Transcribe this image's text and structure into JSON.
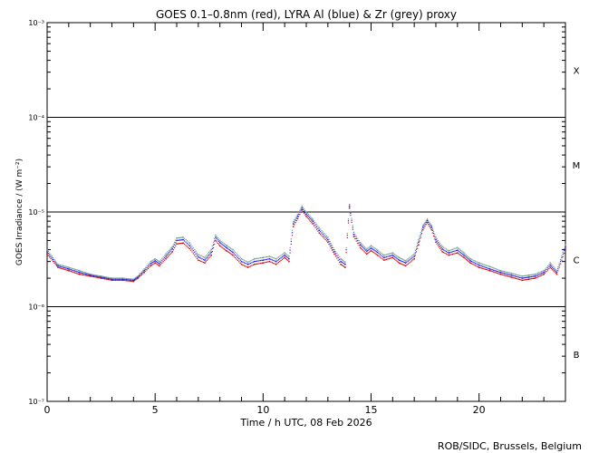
{
  "chart_data": {
    "type": "scatter",
    "title": "GOES 0.1–0.8nm (red), LYRA Al (blue) & Zr (grey) proxy",
    "xlabel": "Time / h UTC, 08 Feb 2026",
    "ylabel": "GOES Irradiance / (W m⁻²)",
    "credit": "ROB/SIDC, Brussels, Belgium",
    "xlim": [
      0,
      24
    ],
    "ylim": [
      1e-07,
      0.001
    ],
    "yscale": "log",
    "x_ticks": [
      0,
      5,
      10,
      15,
      20
    ],
    "x_tick_labels": [
      "0",
      "5",
      "10",
      "15",
      "20"
    ],
    "y_ticks": [
      1e-07,
      1e-06,
      1e-05,
      0.0001,
      0.001
    ],
    "y_tick_labels": [
      "10⁻⁷",
      "10⁻⁶",
      "10⁻⁵",
      "10⁻⁴",
      "10⁻³"
    ],
    "flare_class_levels": [
      1e-06,
      1e-05,
      0.0001
    ],
    "flare_classes": [
      {
        "label": "B",
        "mid": 3.16e-07
      },
      {
        "label": "C",
        "mid": 3.16e-06
      },
      {
        "label": "M",
        "mid": 3.16e-05
      },
      {
        "label": "X",
        "mid": 0.000316
      }
    ],
    "series": [
      {
        "color": "#d40000",
        "x": [
          0,
          0.5,
          1,
          1.5,
          2,
          2.5,
          3,
          3.5,
          4,
          4.2,
          4.5,
          4.8,
          5,
          5.2,
          5.5,
          5.8,
          6,
          6.3,
          6.6,
          7,
          7.3,
          7.6,
          7.8,
          8,
          8.3,
          8.6,
          9,
          9.3,
          9.6,
          10,
          10.3,
          10.6,
          11,
          11.2,
          11.4,
          11.6,
          11.8,
          12,
          12.3,
          12.6,
          13,
          13.3,
          13.6,
          13.8,
          14,
          14.2,
          14.5,
          14.8,
          15,
          15.3,
          15.6,
          16,
          16.3,
          16.6,
          17,
          17.2,
          17.4,
          17.6,
          17.8,
          18,
          18.3,
          18.6,
          19,
          19.3,
          19.6,
          20,
          20.5,
          21,
          21.5,
          22,
          22.3,
          22.6,
          23,
          23.3,
          23.6,
          24
        ],
        "values": [
          3.6e-06,
          2.6e-06,
          2.4e-06,
          2.2e-06,
          2.1e-06,
          2e-06,
          1.9e-06,
          1.9e-06,
          1.85e-06,
          2e-06,
          2.3e-06,
          2.7e-06,
          2.9e-06,
          2.7e-06,
          3.2e-06,
          3.8e-06,
          4.6e-06,
          4.7e-06,
          4.1e-06,
          3.1e-06,
          2.9e-06,
          3.5e-06,
          5e-06,
          4.4e-06,
          3.9e-06,
          3.5e-06,
          2.8e-06,
          2.6e-06,
          2.8e-06,
          2.9e-06,
          3e-06,
          2.8e-06,
          3.3e-06,
          3e-06,
          7e-06,
          8.5e-06,
          1.05e-05,
          9e-06,
          7.5e-06,
          6e-06,
          4.8e-06,
          3.6e-06,
          2.8e-06,
          2.6e-06,
          1.1e-05,
          5.5e-06,
          4.2e-06,
          3.6e-06,
          3.9e-06,
          3.5e-06,
          3.1e-06,
          3.3e-06,
          2.9e-06,
          2.7e-06,
          3.2e-06,
          4.5e-06,
          6.5e-06,
          7.7e-06,
          6.5e-06,
          4.8e-06,
          3.8e-06,
          3.5e-06,
          3.7e-06,
          3.3e-06,
          2.9e-06,
          2.6e-06,
          2.4e-06,
          2.2e-06,
          2.05e-06,
          1.9e-06,
          1.95e-06,
          2e-06,
          2.2e-06,
          2.6e-06,
          2.2e-06,
          4e-06
        ]
      },
      {
        "color": "#1a1ae0",
        "x": [
          0,
          0.5,
          1,
          1.5,
          2,
          2.5,
          3,
          3.5,
          4,
          4.2,
          4.5,
          4.8,
          5,
          5.2,
          5.5,
          5.8,
          6,
          6.3,
          6.6,
          7,
          7.3,
          7.6,
          7.8,
          8,
          8.3,
          8.6,
          9,
          9.3,
          9.6,
          10,
          10.3,
          10.6,
          11,
          11.2,
          11.4,
          11.6,
          11.8,
          12,
          12.3,
          12.6,
          13,
          13.3,
          13.6,
          13.8,
          14,
          14.2,
          14.5,
          14.8,
          15,
          15.3,
          15.6,
          16,
          16.3,
          16.6,
          17,
          17.2,
          17.4,
          17.6,
          17.8,
          18,
          18.3,
          18.6,
          19,
          19.3,
          19.6,
          20,
          20.5,
          21,
          21.5,
          22,
          22.3,
          22.6,
          23,
          23.3,
          23.6,
          24
        ],
        "values": [
          3.8e-06,
          2.7e-06,
          2.5e-06,
          2.3e-06,
          2.15e-06,
          2.05e-06,
          1.95e-06,
          1.95e-06,
          1.9e-06,
          2.05e-06,
          2.4e-06,
          2.85e-06,
          3.05e-06,
          2.85e-06,
          3.4e-06,
          4.1e-06,
          5e-06,
          5.1e-06,
          4.4e-06,
          3.35e-06,
          3.1e-06,
          3.75e-06,
          5.4e-06,
          4.75e-06,
          4.2e-06,
          3.75e-06,
          3e-06,
          2.8e-06,
          3e-06,
          3.1e-06,
          3.2e-06,
          3e-06,
          3.5e-06,
          3.2e-06,
          7.5e-06,
          9e-06,
          1.1e-05,
          9.5e-06,
          8e-06,
          6.4e-06,
          5.1e-06,
          3.8e-06,
          3e-06,
          2.8e-06,
          1.15e-05,
          5.8e-06,
          4.5e-06,
          3.85e-06,
          4.15e-06,
          3.75e-06,
          3.3e-06,
          3.5e-06,
          3.1e-06,
          2.9e-06,
          3.4e-06,
          4.8e-06,
          6.9e-06,
          8.1e-06,
          6.9e-06,
          5.1e-06,
          4.05e-06,
          3.7e-06,
          3.95e-06,
          3.5e-06,
          3.05e-06,
          2.75e-06,
          2.5e-06,
          2.3e-06,
          2.15e-06,
          2e-06,
          2.05e-06,
          2.1e-06,
          2.3e-06,
          2.75e-06,
          2.3e-06,
          4.3e-06
        ]
      },
      {
        "color": "#6e9a8e",
        "x": [
          0,
          0.5,
          1,
          1.5,
          2,
          2.5,
          3,
          3.5,
          4,
          4.2,
          4.5,
          4.8,
          5,
          5.2,
          5.5,
          5.8,
          6,
          6.3,
          6.6,
          7,
          7.3,
          7.6,
          7.8,
          8,
          8.3,
          8.6,
          9,
          9.3,
          9.6,
          10,
          10.3,
          10.6,
          11,
          11.2,
          11.4,
          11.6,
          11.8,
          12,
          12.3,
          12.6,
          13,
          13.3,
          13.6,
          13.8,
          14,
          14.2,
          14.5,
          14.8,
          15,
          15.3,
          15.6,
          16,
          16.3,
          16.6,
          17,
          17.2,
          17.4,
          17.6,
          17.8,
          18,
          18.3,
          18.6,
          19,
          19.3,
          19.6,
          20,
          20.5,
          21,
          21.5,
          22,
          22.3,
          22.6,
          23,
          23.3,
          23.6,
          24
        ],
        "values": [
          4e-06,
          2.8e-06,
          2.6e-06,
          2.4e-06,
          2.2e-06,
          2.1e-06,
          2e-06,
          2e-06,
          1.95e-06,
          2.1e-06,
          2.5e-06,
          3e-06,
          3.2e-06,
          3e-06,
          3.6e-06,
          4.3e-06,
          5.3e-06,
          5.4e-06,
          4.7e-06,
          3.55e-06,
          3.3e-06,
          4e-06,
          5.7e-06,
          5e-06,
          4.45e-06,
          4e-06,
          3.2e-06,
          2.95e-06,
          3.2e-06,
          3.3e-06,
          3.4e-06,
          3.2e-06,
          3.7e-06,
          3.4e-06,
          7.9e-06,
          9.4e-06,
          1.15e-05,
          1e-05,
          8.4e-06,
          6.8e-06,
          5.4e-06,
          4e-06,
          3.2e-06,
          2.95e-06,
          1.2e-05,
          6.1e-06,
          4.75e-06,
          4.05e-06,
          4.4e-06,
          3.95e-06,
          3.5e-06,
          3.7e-06,
          3.3e-06,
          3.05e-06,
          3.6e-06,
          5.1e-06,
          7.2e-06,
          8.4e-06,
          7.2e-06,
          5.4e-06,
          4.3e-06,
          3.9e-06,
          4.2e-06,
          3.7e-06,
          3.2e-06,
          2.9e-06,
          2.65e-06,
          2.4e-06,
          2.25e-06,
          2.1e-06,
          2.15e-06,
          2.2e-06,
          2.4e-06,
          2.9e-06,
          2.4e-06,
          4.5e-06
        ]
      }
    ],
    "grid": false,
    "legend": "none"
  }
}
